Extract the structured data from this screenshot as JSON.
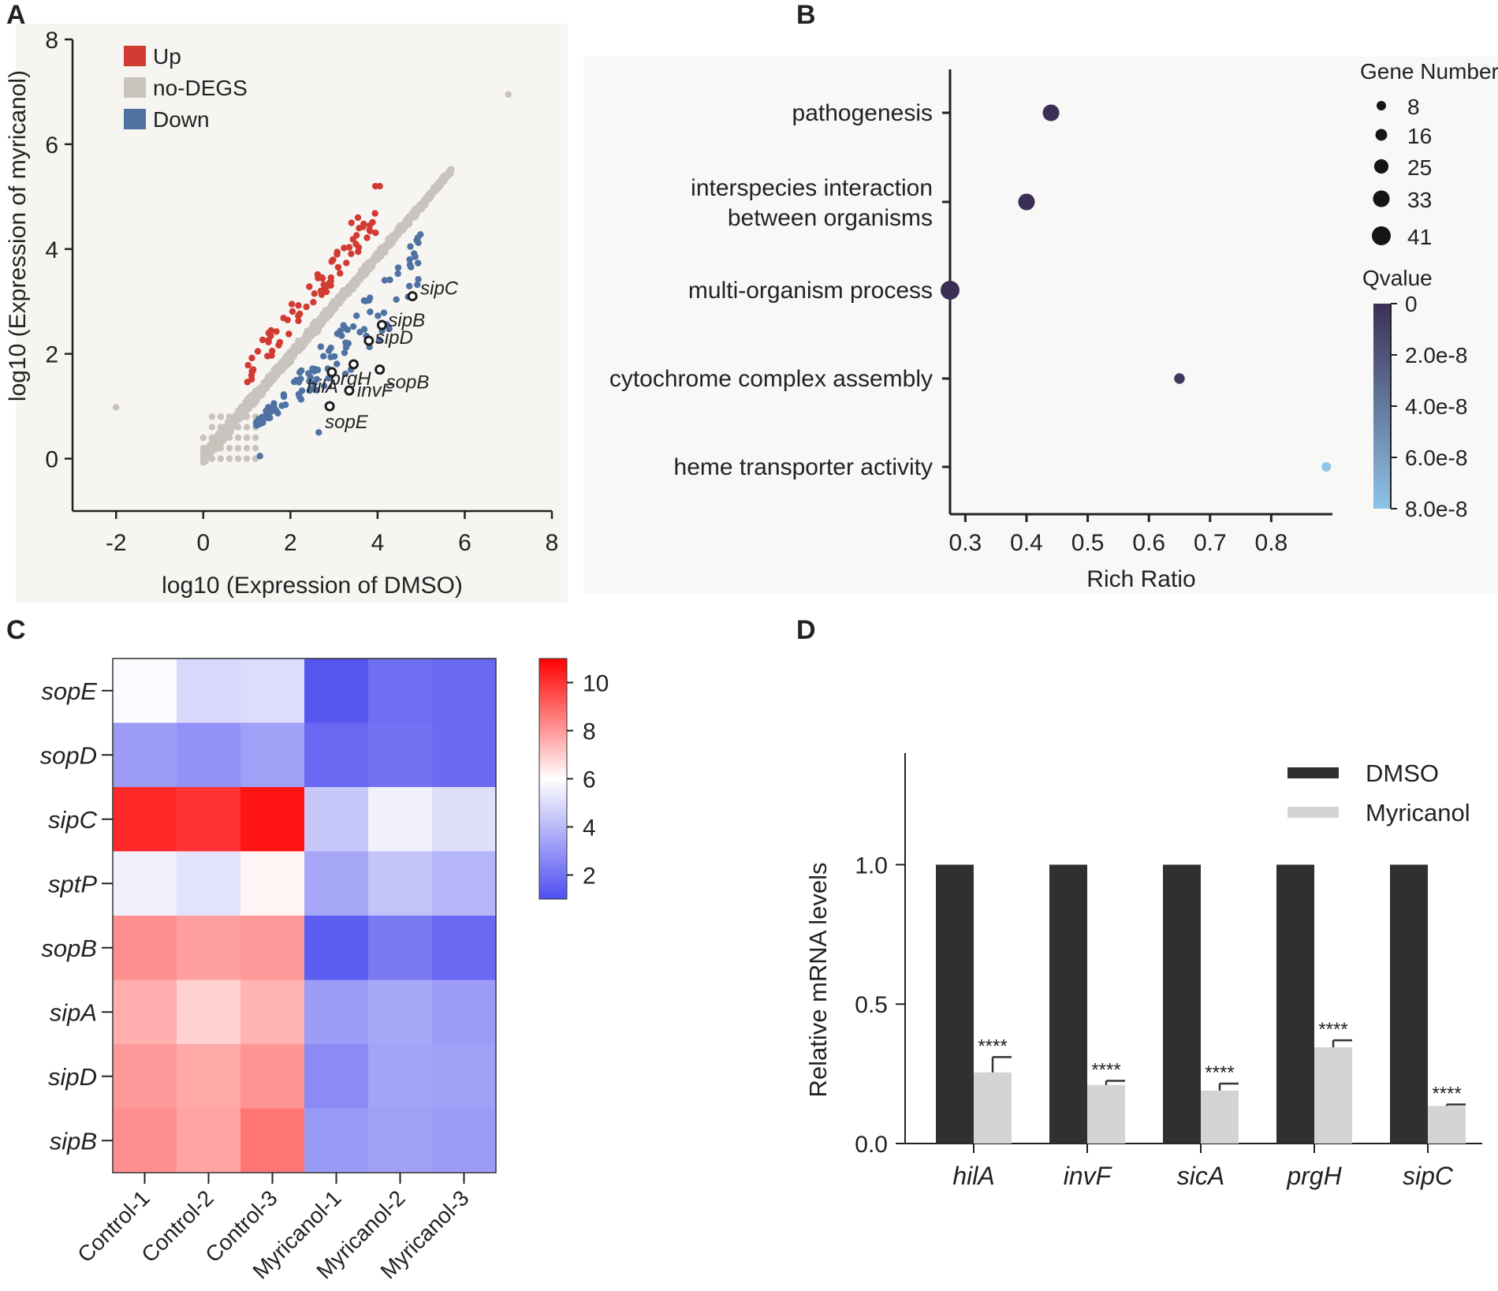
{
  "colors": {
    "up": "#d13b32",
    "nodeg": "#c9c3bd",
    "down": "#4f72a3",
    "highlight": "#1c1c1c",
    "qdark": "#3b2f55",
    "qlight": "#8ec4e8",
    "dmso": "#303030",
    "myricanol": "#d4d4d4",
    "heat_high": "#ff0000",
    "heat_mid": "#ffffff",
    "heat_low": "#4f4ff0"
  },
  "panels": {
    "a": "A",
    "b": "B",
    "c": "C",
    "d": "D"
  },
  "chart_data": [
    {
      "type": "scatter",
      "panel": "A",
      "xlabel": "log10 (Expression of DMSO)",
      "ylabel": "log10 (Expression of myricanol)",
      "xlim": [
        -3,
        8
      ],
      "ylim": [
        -1,
        8
      ],
      "xticks": [
        -2,
        0,
        2,
        4,
        6,
        8
      ],
      "yticks": [
        0,
        2,
        4,
        6,
        8
      ],
      "legend": [
        {
          "label": "Up",
          "key": "up"
        },
        {
          "label": "no-DEGS",
          "key": "nodeg"
        },
        {
          "label": "Down",
          "key": "down"
        }
      ],
      "outliers": [
        [
          -2.0,
          0.98
        ],
        [
          7.0,
          6.95
        ]
      ],
      "highlight_genes": [
        {
          "gene": "sipC",
          "x": 4.8,
          "y": 3.1
        },
        {
          "gene": "sipB",
          "x": 4.1,
          "y": 2.55
        },
        {
          "gene": "sipD",
          "x": 3.8,
          "y": 2.25
        },
        {
          "gene": "prgH",
          "x": 3.45,
          "y": 1.8
        },
        {
          "gene": "sopB",
          "x": 4.05,
          "y": 1.7
        },
        {
          "gene": "hilA",
          "x": 2.95,
          "y": 1.65
        },
        {
          "gene": "invF",
          "x": 3.35,
          "y": 1.3
        },
        {
          "gene": "sopE",
          "x": 2.9,
          "y": 1.0
        }
      ]
    },
    {
      "type": "scatter",
      "panel": "B",
      "xlabel": "Rich Ratio",
      "xlim": [
        0.275,
        0.9
      ],
      "xticks": [
        0.3,
        0.4,
        0.5,
        0.6,
        0.7,
        0.8
      ],
      "categories": [
        "pathogenesis",
        "interspecies interaction|between organisms",
        "multi-organism process",
        "cytochrome complex assembly",
        "heme transporter activity"
      ],
      "points": [
        {
          "term": "pathogenesis",
          "rich_ratio": 0.44,
          "gene_number": 33,
          "qvalue": 0
        },
        {
          "term": "interspecies interaction between organisms",
          "rich_ratio": 0.4,
          "gene_number": 33,
          "qvalue": 0
        },
        {
          "term": "multi-organism process",
          "rich_ratio": 0.275,
          "gene_number": 41,
          "qvalue": 0
        },
        {
          "term": "cytochrome complex assembly",
          "rich_ratio": 0.65,
          "gene_number": 12,
          "qvalue": 5e-09
        },
        {
          "term": "heme transporter activity",
          "rich_ratio": 0.89,
          "gene_number": 8,
          "qvalue": 8e-08
        }
      ],
      "size_legend_title": "Gene Number",
      "size_legend": [
        "8",
        "16",
        "25",
        "33",
        "41"
      ],
      "color_legend_title": "Qvalue",
      "color_ticks": [
        "0",
        "2.0e-8",
        "4.0e-8",
        "6.0e-8",
        "8.0e-8"
      ],
      "color_range": [
        0,
        8e-08
      ]
    },
    {
      "type": "heatmap",
      "panel": "C",
      "rows": [
        "sopE",
        "sopD",
        "sipC",
        "sptP",
        "sopB",
        "sipA",
        "sipD",
        "sipB"
      ],
      "columns": [
        "Control-1",
        "Control-2",
        "Control-3",
        "Myricanol-1",
        "Myricanol-2",
        "Myricanol-3"
      ],
      "values": [
        [
          5.9,
          4.9,
          5.0,
          1.2,
          1.9,
          1.7
        ],
        [
          3.2,
          2.9,
          3.3,
          1.7,
          2.0,
          1.8
        ],
        [
          10.2,
          10.0,
          10.6,
          4.4,
          5.6,
          5.1
        ],
        [
          5.6,
          5.2,
          6.2,
          3.5,
          4.3,
          3.9
        ],
        [
          8.2,
          7.9,
          8.0,
          1.4,
          2.2,
          1.7
        ],
        [
          7.6,
          6.9,
          7.5,
          3.2,
          3.5,
          3.2
        ],
        [
          8.0,
          7.7,
          8.1,
          2.7,
          3.4,
          3.3
        ],
        [
          8.2,
          7.8,
          8.7,
          3.1,
          3.3,
          3.2
        ]
      ],
      "colorbar_ticks": [
        "10",
        "8",
        "6",
        "4",
        "2"
      ],
      "colorbar_range": [
        1,
        11
      ]
    },
    {
      "type": "bar",
      "panel": "D",
      "ylabel": "Relative mRNA levels",
      "ylim": [
        0,
        1.4
      ],
      "yticks": [
        "0.0",
        "0.5",
        "1.0"
      ],
      "categories": [
        "hilA",
        "invF",
        "sicA",
        "prgH",
        "sipC"
      ],
      "series": [
        {
          "name": "DMSO",
          "values": [
            1.0,
            1.0,
            1.0,
            1.0,
            1.0
          ],
          "errors": [
            0,
            0,
            0,
            0,
            0
          ]
        },
        {
          "name": "Myricanol",
          "values": [
            0.255,
            0.21,
            0.19,
            0.345,
            0.135
          ],
          "errors": [
            0.055,
            0.015,
            0.025,
            0.025,
            0.005
          ]
        }
      ],
      "significance": [
        "****",
        "****",
        "****",
        "****",
        "****"
      ]
    }
  ]
}
